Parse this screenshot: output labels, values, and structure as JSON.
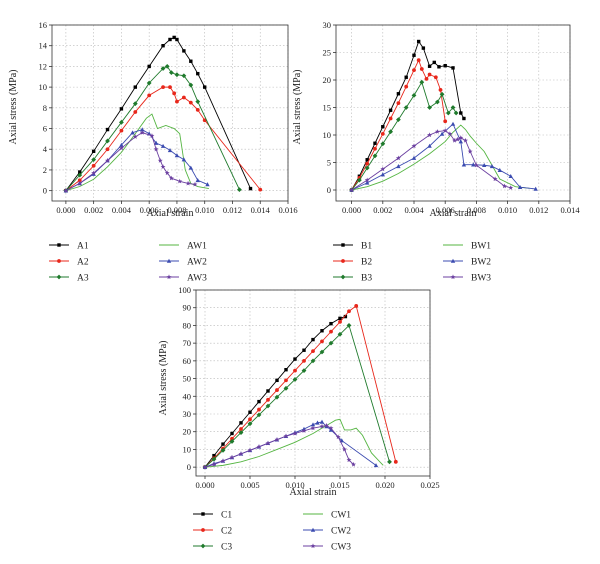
{
  "chart_data": [
    {
      "type": "line",
      "xlabel": "Axial strain",
      "ylabel": "Axial stress (MPa)",
      "xlim": [
        -0.001,
        0.016
      ],
      "ylim": [
        -1,
        16
      ],
      "xticks": [
        "0.000",
        "0.002",
        "0.004",
        "0.006",
        "0.008",
        "0.010",
        "0.012",
        "0.014",
        "0.016"
      ],
      "xtick_values": [
        0,
        0.002,
        0.004,
        0.006,
        0.008,
        0.01,
        0.012,
        0.014,
        0.016
      ],
      "yticks": [
        "0",
        "2",
        "4",
        "6",
        "8",
        "10",
        "12",
        "14",
        "16"
      ],
      "ytick_values": [
        0,
        2,
        4,
        6,
        8,
        10,
        12,
        14,
        16
      ],
      "grid": true,
      "legend_position": "below",
      "series": [
        {
          "name": "A1",
          "color": "#000000",
          "marker": "square",
          "x": [
            0,
            0.001,
            0.002,
            0.003,
            0.004,
            0.005,
            0.006,
            0.007,
            0.0075,
            0.0078,
            0.008,
            0.0085,
            0.009,
            0.0095,
            0.01,
            0.0133
          ],
          "y": [
            0,
            1.8,
            3.8,
            5.9,
            7.9,
            10.0,
            12.0,
            14.0,
            14.6,
            14.8,
            14.6,
            13.5,
            12.5,
            11.3,
            10.0,
            0.2
          ]
        },
        {
          "name": "A2",
          "color": "#e8271b",
          "marker": "circle",
          "x": [
            0,
            0.001,
            0.002,
            0.003,
            0.004,
            0.005,
            0.006,
            0.007,
            0.0075,
            0.0078,
            0.008,
            0.0085,
            0.009,
            0.0095,
            0.01,
            0.014
          ],
          "y": [
            0,
            1.0,
            2.4,
            4.0,
            5.8,
            7.6,
            9.2,
            10.0,
            10.0,
            9.4,
            8.6,
            9.0,
            8.5,
            7.8,
            6.8,
            0.1
          ]
        },
        {
          "name": "A3",
          "color": "#1f7a2c",
          "marker": "diamond",
          "x": [
            0,
            0.001,
            0.002,
            0.003,
            0.004,
            0.005,
            0.006,
            0.007,
            0.0073,
            0.0076,
            0.008,
            0.0085,
            0.009,
            0.0095,
            0.0125
          ],
          "y": [
            0,
            1.5,
            3.0,
            4.8,
            6.6,
            8.4,
            10.4,
            11.8,
            12.0,
            11.4,
            11.2,
            11.1,
            10.2,
            8.6,
            0.1
          ]
        },
        {
          "name": "AW1",
          "color": "#55b542",
          "marker": "none",
          "x": [
            0,
            0.001,
            0.002,
            0.003,
            0.004,
            0.005,
            0.0058,
            0.0062,
            0.0066,
            0.0072,
            0.0078,
            0.0082,
            0.0086,
            0.009,
            0.0095,
            0.0103
          ],
          "y": [
            0,
            0.4,
            1.1,
            2.3,
            3.7,
            5.5,
            7.0,
            7.4,
            6.0,
            6.3,
            6.0,
            5.5,
            2.0,
            0.7,
            0.4,
            0.2
          ]
        },
        {
          "name": "AW2",
          "color": "#3b4bb0",
          "marker": "triangle",
          "x": [
            0,
            0.001,
            0.002,
            0.003,
            0.004,
            0.0048,
            0.0055,
            0.006,
            0.0065,
            0.007,
            0.0075,
            0.008,
            0.0085,
            0.009,
            0.0095,
            0.0102
          ],
          "y": [
            0,
            0.7,
            1.6,
            2.9,
            4.4,
            5.6,
            5.9,
            5.5,
            4.6,
            4.3,
            3.9,
            3.4,
            3.0,
            2.2,
            1.0,
            0.6
          ]
        },
        {
          "name": "AW3",
          "color": "#6b3fa0",
          "marker": "star",
          "x": [
            0,
            0.001,
            0.002,
            0.003,
            0.004,
            0.005,
            0.0055,
            0.0062,
            0.0065,
            0.0068,
            0.007,
            0.0073,
            0.0076,
            0.0082,
            0.0088,
            0.0093
          ],
          "y": [
            0,
            0.7,
            1.7,
            2.9,
            4.1,
            5.2,
            5.6,
            5.3,
            4.0,
            2.9,
            2.3,
            1.7,
            1.2,
            0.9,
            0.7,
            0.6
          ]
        }
      ]
    },
    {
      "type": "line",
      "xlabel": "Axial strain",
      "ylabel": "Axial stress (MPa)",
      "xlim": [
        -0.001,
        0.014
      ],
      "ylim": [
        -2,
        30
      ],
      "xticks": [
        "0.000",
        "0.002",
        "0.004",
        "0.006",
        "0.008",
        "0.010",
        "0.012",
        "0.014"
      ],
      "xtick_values": [
        0,
        0.002,
        0.004,
        0.006,
        0.008,
        0.01,
        0.012,
        0.014
      ],
      "yticks": [
        "0",
        "5",
        "10",
        "15",
        "20",
        "25",
        "30"
      ],
      "ytick_values": [
        0,
        5,
        10,
        15,
        20,
        25,
        30
      ],
      "grid": true,
      "legend_position": "below",
      "series": [
        {
          "name": "B1",
          "color": "#000000",
          "marker": "square",
          "x": [
            0,
            0.0005,
            0.001,
            0.0015,
            0.002,
            0.0025,
            0.003,
            0.0035,
            0.004,
            0.0043,
            0.0046,
            0.005,
            0.0053,
            0.0056,
            0.006,
            0.0065,
            0.007,
            0.0072
          ],
          "y": [
            0,
            2.5,
            5.5,
            8.5,
            11.5,
            14.5,
            17.5,
            20.5,
            24.5,
            27.0,
            25.8,
            22.5,
            23.2,
            22.4,
            22.6,
            22.2,
            14.0,
            13.0
          ]
        },
        {
          "name": "B2",
          "color": "#e8271b",
          "marker": "circle",
          "x": [
            0,
            0.0005,
            0.001,
            0.0015,
            0.002,
            0.0025,
            0.003,
            0.0035,
            0.004,
            0.0043,
            0.0045,
            0.0048,
            0.005,
            0.0054,
            0.0057,
            0.006
          ],
          "y": [
            0,
            2.2,
            4.8,
            7.5,
            10.2,
            13.0,
            15.8,
            18.8,
            21.8,
            23.6,
            22.0,
            20.2,
            21.0,
            20.5,
            18.2,
            12.5
          ]
        },
        {
          "name": "B3",
          "color": "#1f7a2c",
          "marker": "diamond",
          "x": [
            0,
            0.0005,
            0.001,
            0.0015,
            0.002,
            0.0025,
            0.003,
            0.0035,
            0.004,
            0.0045,
            0.005,
            0.0055,
            0.0058,
            0.0062,
            0.0065,
            0.0067
          ],
          "y": [
            0,
            1.8,
            4.0,
            6.2,
            8.4,
            10.6,
            12.8,
            15.0,
            17.2,
            19.6,
            15.0,
            16.0,
            17.4,
            14.0,
            15.0,
            14.0
          ]
        },
        {
          "name": "BW1",
          "color": "#55b542",
          "marker": "none",
          "x": [
            0,
            0.001,
            0.002,
            0.003,
            0.004,
            0.005,
            0.006,
            0.0065,
            0.007,
            0.0073,
            0.0076,
            0.008,
            0.0085,
            0.009,
            0.0095,
            0.0105,
            0.0114
          ],
          "y": [
            0,
            0.6,
            1.6,
            3.0,
            4.7,
            6.6,
            8.8,
            10.5,
            11.8,
            11.0,
            9.8,
            8.5,
            7.0,
            4.5,
            2.0,
            0.6,
            0.3
          ]
        },
        {
          "name": "BW2",
          "color": "#3b4bb0",
          "marker": "triangle",
          "x": [
            0,
            0.001,
            0.002,
            0.003,
            0.004,
            0.005,
            0.0058,
            0.0065,
            0.007,
            0.0072,
            0.0078,
            0.0085,
            0.009,
            0.0095,
            0.0102,
            0.0108,
            0.0118
          ],
          "y": [
            0,
            1.3,
            2.8,
            4.3,
            5.8,
            8.0,
            10.2,
            12.0,
            8.8,
            4.6,
            4.6,
            4.5,
            4.3,
            3.6,
            2.5,
            0.5,
            0.2
          ]
        },
        {
          "name": "BW3",
          "color": "#6b3fa0",
          "marker": "star",
          "x": [
            0,
            0.001,
            0.002,
            0.003,
            0.004,
            0.005,
            0.0055,
            0.006,
            0.0063,
            0.0066,
            0.0068,
            0.007,
            0.0073,
            0.0076,
            0.008,
            0.0092,
            0.0098,
            0.0102
          ],
          "y": [
            0,
            1.8,
            3.8,
            5.8,
            8.0,
            10.0,
            10.6,
            10.8,
            10.2,
            9.0,
            9.2,
            9.5,
            9.0,
            7.0,
            4.5,
            2.0,
            0.7,
            0.4
          ]
        }
      ]
    },
    {
      "type": "line",
      "xlabel": "Axial strain",
      "ylabel": "Axial stress (MPa)",
      "xlim": [
        -0.001,
        0.025
      ],
      "ylim": [
        -5,
        100
      ],
      "xticks": [
        "0.000",
        "0.005",
        "0.010",
        "0.015",
        "0.020",
        "0.025"
      ],
      "xtick_values": [
        0,
        0.005,
        0.01,
        0.015,
        0.02,
        0.025
      ],
      "yticks": [
        "0",
        "10",
        "20",
        "30",
        "40",
        "50",
        "60",
        "70",
        "80",
        "90",
        "100"
      ],
      "ytick_values": [
        0,
        10,
        20,
        30,
        40,
        50,
        60,
        70,
        80,
        90,
        100
      ],
      "grid": true,
      "legend_position": "below",
      "series": [
        {
          "name": "C1",
          "color": "#000000",
          "marker": "square",
          "x": [
            0,
            0.001,
            0.002,
            0.003,
            0.004,
            0.005,
            0.006,
            0.007,
            0.008,
            0.009,
            0.01,
            0.011,
            0.012,
            0.013,
            0.014,
            0.015,
            0.0156
          ],
          "y": [
            0,
            6.5,
            13,
            19,
            25,
            31,
            37,
            43,
            49,
            55,
            61,
            66,
            72,
            77,
            81,
            84,
            85
          ]
        },
        {
          "name": "C2",
          "color": "#e8271b",
          "marker": "circle",
          "x": [
            0,
            0.001,
            0.002,
            0.003,
            0.004,
            0.005,
            0.006,
            0.007,
            0.008,
            0.009,
            0.01,
            0.011,
            0.012,
            0.013,
            0.014,
            0.015,
            0.016,
            0.0168,
            0.0212
          ],
          "y": [
            0,
            5,
            10.5,
            16,
            21.5,
            27,
            32.5,
            38,
            43.5,
            49,
            54.5,
            60,
            65.5,
            71,
            76.5,
            82,
            88,
            91,
            3
          ]
        },
        {
          "name": "C3",
          "color": "#1f7a2c",
          "marker": "diamond",
          "x": [
            0,
            0.001,
            0.002,
            0.003,
            0.004,
            0.005,
            0.006,
            0.007,
            0.008,
            0.009,
            0.01,
            0.011,
            0.012,
            0.013,
            0.014,
            0.015,
            0.016,
            0.0205
          ],
          "y": [
            0,
            4.5,
            9.5,
            14.5,
            19.5,
            24.5,
            29.5,
            34.5,
            39.5,
            44.5,
            49.5,
            54.5,
            60,
            65,
            70,
            75,
            80,
            3
          ]
        },
        {
          "name": "CW1",
          "color": "#55b542",
          "marker": "none",
          "x": [
            0,
            0.002,
            0.004,
            0.006,
            0.008,
            0.01,
            0.012,
            0.013,
            0.014,
            0.0145,
            0.015,
            0.0155,
            0.0162,
            0.0168,
            0.0175,
            0.0185,
            0.0198
          ],
          "y": [
            0,
            1,
            3,
            6,
            10,
            14,
            19,
            22,
            25,
            26.5,
            27,
            21,
            21,
            22,
            18,
            8,
            1
          ]
        },
        {
          "name": "CW2",
          "color": "#3b4bb0",
          "marker": "triangle",
          "x": [
            0,
            0.001,
            0.002,
            0.003,
            0.004,
            0.005,
            0.006,
            0.007,
            0.008,
            0.009,
            0.01,
            0.011,
            0.012,
            0.0125,
            0.013,
            0.0135,
            0.014,
            0.0152,
            0.019
          ],
          "y": [
            0,
            2,
            3.5,
            5.5,
            7.5,
            9.5,
            11.5,
            13.5,
            15.5,
            17.5,
            19.5,
            21.5,
            24,
            25,
            25.5,
            23,
            21,
            15,
            1
          ]
        },
        {
          "name": "CW3",
          "color": "#6b3fa0",
          "marker": "star",
          "x": [
            0,
            0.001,
            0.002,
            0.003,
            0.004,
            0.005,
            0.006,
            0.007,
            0.008,
            0.009,
            0.01,
            0.011,
            0.012,
            0.013,
            0.0135,
            0.014,
            0.0148,
            0.0155,
            0.016,
            0.0165
          ],
          "y": [
            0,
            1.5,
            3.5,
            5.5,
            7.5,
            9.5,
            11.5,
            13.5,
            15.5,
            17.5,
            19,
            20.5,
            22,
            23,
            23.5,
            22,
            17,
            10,
            4,
            1.5
          ]
        }
      ]
    }
  ]
}
